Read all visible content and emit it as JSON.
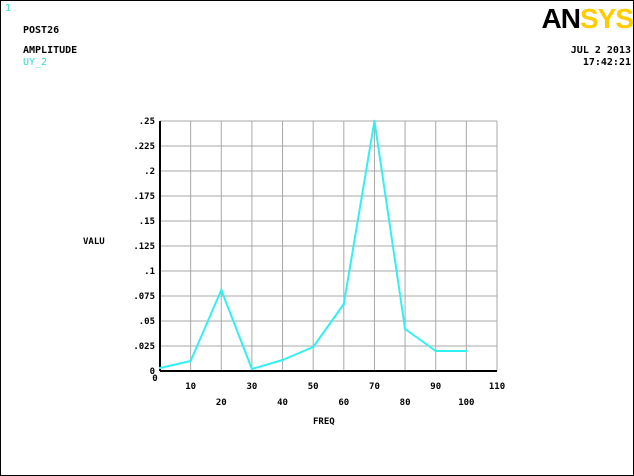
{
  "header": {
    "window_number": "1",
    "module": "POST26",
    "title": "AMPLITUDE",
    "variable": "UY_2",
    "date": "JUL  2 2013",
    "time": "17:42:21",
    "logo_part1": "AN",
    "logo_part2": "SYS"
  },
  "colors": {
    "curve": "#33f0f0",
    "grid": "#a8a8a8",
    "axis": "#000000",
    "logo_accent": "#ffcc00"
  },
  "chart_data": {
    "type": "line",
    "xlabel": "FREQ",
    "ylabel": "VALU",
    "xlim": [
      0,
      110
    ],
    "ylim": [
      0,
      0.25
    ],
    "x_ticks": [
      10,
      20,
      30,
      40,
      50,
      60,
      70,
      80,
      90,
      100,
      110
    ],
    "x_tick_labels": [
      "10",
      "20",
      "30",
      "40",
      "50",
      "60",
      "70",
      "80",
      "90",
      "100",
      "110"
    ],
    "y_ticks": [
      0,
      0.025,
      0.05,
      0.075,
      0.1,
      0.125,
      0.15,
      0.175,
      0.2,
      0.225,
      0.25
    ],
    "y_tick_labels": [
      "0",
      ".025",
      ".05",
      ".075",
      ".1",
      ".125",
      ".15",
      ".175",
      ".2",
      ".225",
      ".25"
    ],
    "x_start_label": "0",
    "grid": true,
    "series": [
      {
        "x": [
          0,
          10,
          20,
          30,
          40,
          50,
          60,
          70,
          80,
          90,
          100
        ],
        "y": [
          0.003,
          0.01,
          0.081,
          0.002,
          0.011,
          0.024,
          0.067,
          0.25,
          0.042,
          0.02,
          0.02
        ]
      }
    ]
  }
}
